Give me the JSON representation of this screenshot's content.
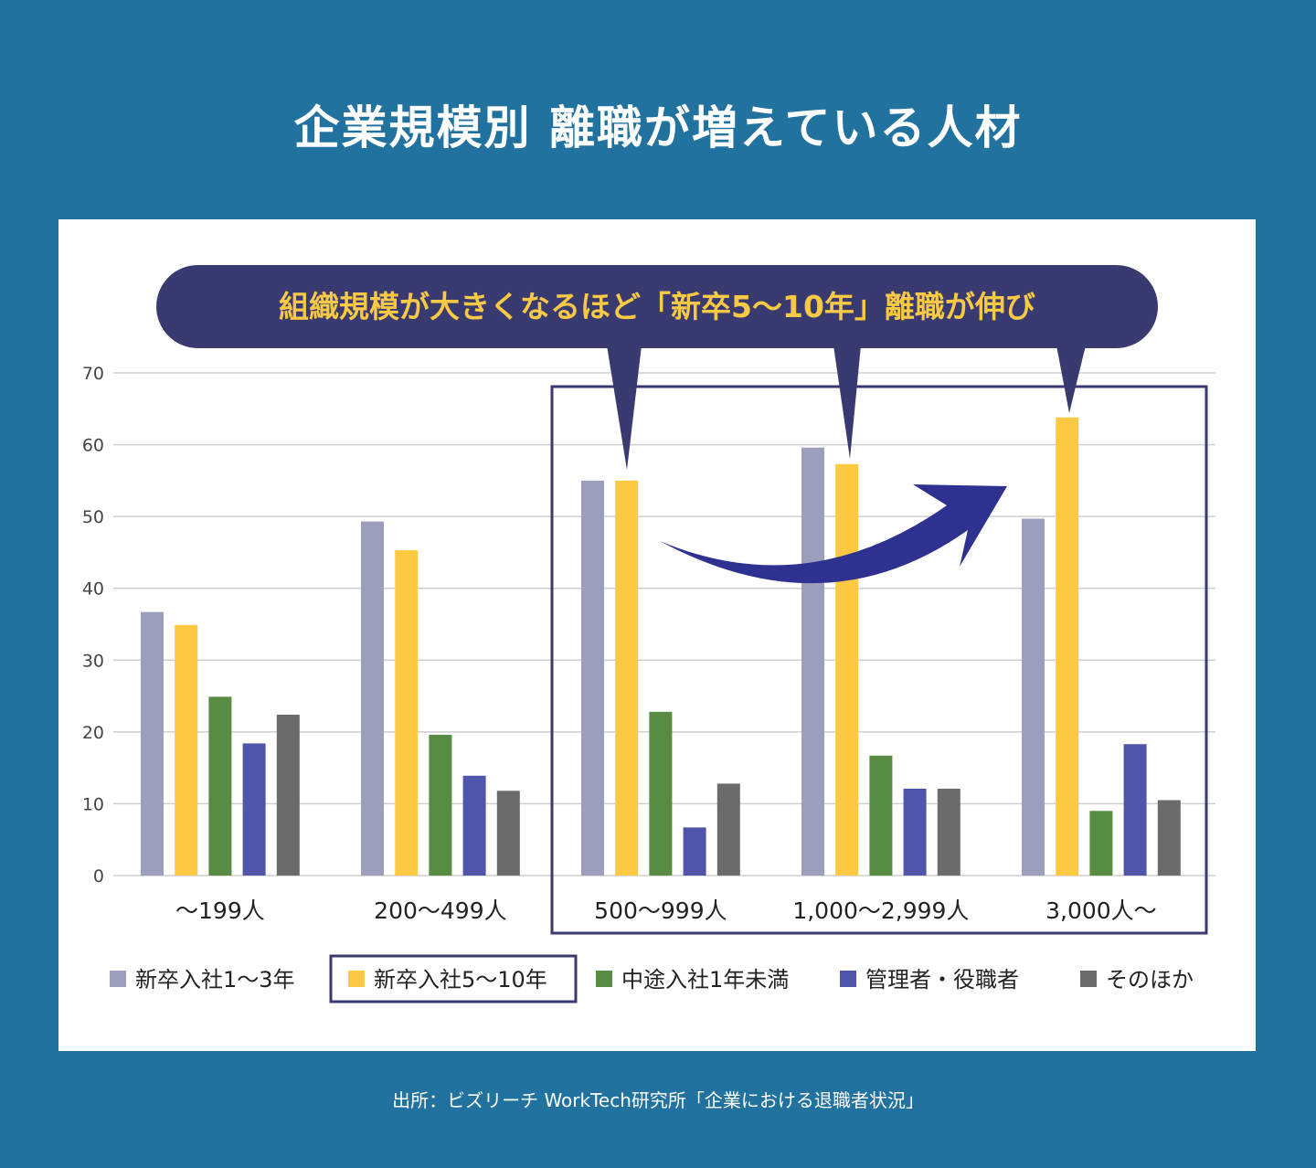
{
  "title": "企業規模別 離職が増えている人材",
  "source": "出所：ビズリーチ WorkTech研究所「企業における退職者状況」",
  "callout": "組織規模が大きくなるほど「新卒5〜10年」離職が伸び",
  "colors": {
    "background": "#2272a0",
    "callout_bg": "#383a70",
    "callout_text": "#f8c944",
    "highlight_frame": "#383a70",
    "arrow": "#2f3191"
  },
  "chart_data": {
    "type": "bar",
    "categories": [
      "〜199人",
      "200〜499人",
      "500〜999人",
      "1,000〜2,999人",
      "3,000人〜"
    ],
    "series": [
      {
        "name": "新卒入社1〜3年",
        "color": "#9b9fbb",
        "values": [
          36.7,
          49.3,
          55.0,
          59.6,
          49.7
        ]
      },
      {
        "name": "新卒入社5〜10年",
        "color": "#fdc943",
        "values": [
          34.9,
          45.3,
          55.0,
          57.3,
          63.8
        ]
      },
      {
        "name": "中途入社1年未満",
        "color": "#588c42",
        "values": [
          24.9,
          19.6,
          22.8,
          16.7,
          9.0
        ]
      },
      {
        "name": "管理者・役職者",
        "color": "#4f55aa",
        "values": [
          18.4,
          13.9,
          6.7,
          12.1,
          18.3
        ]
      },
      {
        "name": "そのほか",
        "color": "#6b6b6b",
        "values": [
          22.4,
          11.8,
          12.8,
          12.1,
          10.5
        ]
      }
    ],
    "ylim": [
      0,
      70
    ],
    "yticks": [
      0,
      10,
      20,
      30,
      40,
      50,
      60,
      70
    ],
    "grid": true,
    "legend_position": "bottom",
    "highlighted_categories": [
      "500〜999人",
      "1,000〜2,999人",
      "3,000人〜"
    ],
    "highlighted_series": "新卒入社5〜10年"
  }
}
